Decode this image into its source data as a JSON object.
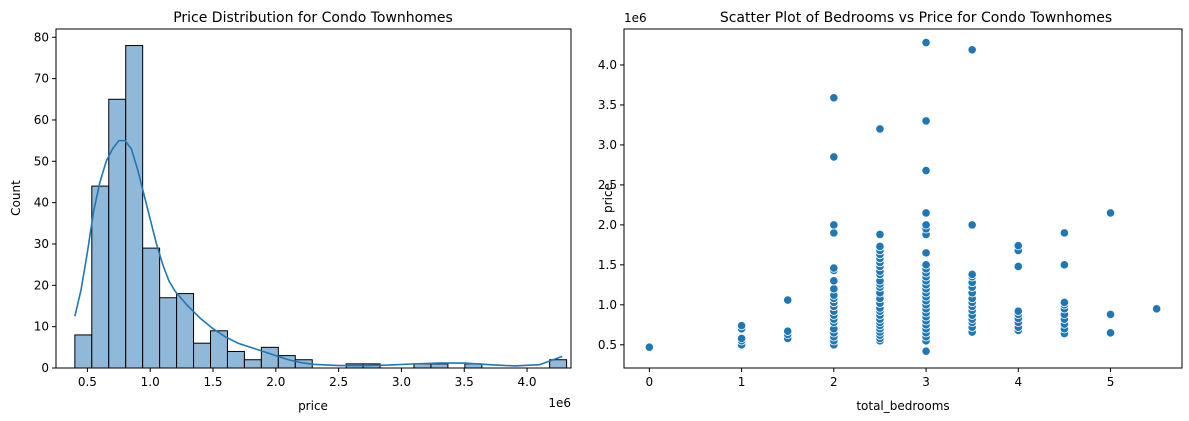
{
  "chart_data": [
    {
      "type": "bar",
      "title": "Price Distribution for Condo Townhomes",
      "xlabel": "price",
      "ylabel": "Count",
      "x_offset_label": "1e6",
      "xlim": [
        0.25,
        4.35
      ],
      "ylim": [
        0,
        82
      ],
      "xticks": [
        0.5,
        1.0,
        1.5,
        2.0,
        2.5,
        3.0,
        3.5,
        4.0
      ],
      "xtick_labels": [
        "0.5",
        "1.0",
        "1.5",
        "2.0",
        "2.5",
        "3.0",
        "3.5",
        "4.0"
      ],
      "yticks": [
        0,
        10,
        20,
        30,
        40,
        50,
        60,
        70,
        80
      ],
      "ytick_labels": [
        "0",
        "10",
        "20",
        "30",
        "40",
        "50",
        "60",
        "70",
        "80"
      ],
      "bin_edges": [
        0.4,
        0.535,
        0.67,
        0.805,
        0.94,
        1.075,
        1.21,
        1.345,
        1.48,
        1.615,
        1.75,
        1.885,
        2.02,
        2.155,
        2.29,
        2.425,
        2.56,
        2.695,
        2.83,
        2.965,
        3.1,
        3.235,
        3.37,
        3.505,
        3.64,
        3.775,
        3.91,
        4.045,
        4.18,
        4.315
      ],
      "values": [
        8,
        44,
        65,
        78,
        29,
        17,
        18,
        6,
        9,
        4,
        2,
        5,
        3,
        2,
        0,
        0,
        1,
        1,
        0,
        0,
        1,
        1,
        0,
        1,
        0,
        0,
        0,
        0,
        2
      ],
      "kde": {
        "x": [
          0.4,
          0.45,
          0.5,
          0.55,
          0.6,
          0.65,
          0.7,
          0.75,
          0.8,
          0.85,
          0.9,
          0.95,
          1.0,
          1.05,
          1.1,
          1.15,
          1.2,
          1.3,
          1.4,
          1.5,
          1.6,
          1.7,
          1.8,
          1.9,
          2.0,
          2.1,
          2.2,
          2.3,
          2.5,
          2.7,
          2.9,
          3.1,
          3.3,
          3.5,
          3.7,
          3.9,
          4.1,
          4.28
        ],
        "y": [
          12.5,
          19,
          28,
          38,
          45,
          50,
          53,
          55,
          55,
          53,
          48,
          42,
          36,
          30,
          25,
          21,
          18.5,
          15,
          12,
          9.5,
          7.5,
          6,
          5,
          4,
          3,
          2,
          1.3,
          0.9,
          0.6,
          0.6,
          0.7,
          1,
          1.2,
          1.2,
          0.8,
          0.5,
          0.8,
          2.8
        ]
      },
      "colors": {
        "bar_fill": "#8fb8d9",
        "bar_edge": "#000000",
        "kde_line": "#1f77b4"
      }
    },
    {
      "type": "scatter",
      "title": "Scatter Plot of Bedrooms vs Price for Condo Townhomes",
      "xlabel": "total_bedrooms",
      "ylabel": "price",
      "y_offset_label": "1e6",
      "xlim": [
        -0.275,
        5.775
      ],
      "ylim": [
        0.21,
        4.45
      ],
      "xticks": [
        0,
        1,
        2,
        3,
        4,
        5
      ],
      "xtick_labels": [
        "0",
        "1",
        "2",
        "3",
        "4",
        "5"
      ],
      "yticks": [
        0.5,
        1.0,
        1.5,
        2.0,
        2.5,
        3.0,
        3.5,
        4.0
      ],
      "ytick_labels": [
        "0.5",
        "1.0",
        "1.5",
        "2.0",
        "2.5",
        "3.0",
        "3.5",
        "4.0"
      ],
      "points": [
        [
          0,
          0.47
        ],
        [
          1,
          0.5
        ],
        [
          1,
          0.55
        ],
        [
          1,
          0.58
        ],
        [
          1,
          0.7
        ],
        [
          1,
          0.74
        ],
        [
          1.5,
          0.58
        ],
        [
          1.5,
          0.63
        ],
        [
          1.5,
          0.67
        ],
        [
          1.5,
          1.06
        ],
        [
          2,
          0.5
        ],
        [
          2,
          0.55
        ],
        [
          2,
          0.6
        ],
        [
          2,
          0.65
        ],
        [
          2,
          0.7
        ],
        [
          2,
          0.78
        ],
        [
          2,
          0.82
        ],
        [
          2,
          0.87
        ],
        [
          2,
          0.92
        ],
        [
          2,
          0.98
        ],
        [
          2,
          1.03
        ],
        [
          2,
          1.08
        ],
        [
          2,
          1.12
        ],
        [
          2,
          1.2
        ],
        [
          2,
          1.3
        ],
        [
          2,
          1.43
        ],
        [
          2,
          1.46
        ],
        [
          2,
          1.9
        ],
        [
          2,
          2.0
        ],
        [
          2,
          2.85
        ],
        [
          2,
          3.59
        ],
        [
          2.5,
          0.55
        ],
        [
          2.5,
          0.58
        ],
        [
          2.5,
          0.62
        ],
        [
          2.5,
          0.66
        ],
        [
          2.5,
          0.7
        ],
        [
          2.5,
          0.74
        ],
        [
          2.5,
          0.78
        ],
        [
          2.5,
          0.82
        ],
        [
          2.5,
          0.87
        ],
        [
          2.5,
          0.92
        ],
        [
          2.5,
          0.96
        ],
        [
          2.5,
          1.02
        ],
        [
          2.5,
          1.08
        ],
        [
          2.5,
          1.15
        ],
        [
          2.5,
          1.22
        ],
        [
          2.5,
          1.26
        ],
        [
          2.5,
          1.3
        ],
        [
          2.5,
          1.38
        ],
        [
          2.5,
          1.42
        ],
        [
          2.5,
          1.48
        ],
        [
          2.5,
          1.53
        ],
        [
          2.5,
          1.58
        ],
        [
          2.5,
          1.63
        ],
        [
          2.5,
          1.68
        ],
        [
          2.5,
          1.73
        ],
        [
          2.5,
          1.88
        ],
        [
          2.5,
          3.2
        ],
        [
          3,
          0.42
        ],
        [
          3,
          0.55
        ],
        [
          3,
          0.6
        ],
        [
          3,
          0.65
        ],
        [
          3,
          0.7
        ],
        [
          3,
          0.75
        ],
        [
          3,
          0.8
        ],
        [
          3,
          0.85
        ],
        [
          3,
          0.9
        ],
        [
          3,
          0.95
        ],
        [
          3,
          1.0
        ],
        [
          3,
          1.05
        ],
        [
          3,
          1.1
        ],
        [
          3,
          1.15
        ],
        [
          3,
          1.2
        ],
        [
          3,
          1.25
        ],
        [
          3,
          1.3
        ],
        [
          3,
          1.35
        ],
        [
          3,
          1.4
        ],
        [
          3,
          1.45
        ],
        [
          3,
          1.5
        ],
        [
          3,
          1.65
        ],
        [
          3,
          1.88
        ],
        [
          3,
          1.95
        ],
        [
          3,
          2.0
        ],
        [
          3,
          2.15
        ],
        [
          3,
          2.68
        ],
        [
          3,
          3.3
        ],
        [
          3,
          4.28
        ],
        [
          3.5,
          0.66
        ],
        [
          3.5,
          0.72
        ],
        [
          3.5,
          0.78
        ],
        [
          3.5,
          0.82
        ],
        [
          3.5,
          0.87
        ],
        [
          3.5,
          0.93
        ],
        [
          3.5,
          0.98
        ],
        [
          3.5,
          1.03
        ],
        [
          3.5,
          1.08
        ],
        [
          3.5,
          1.15
        ],
        [
          3.5,
          1.22
        ],
        [
          3.5,
          1.28
        ],
        [
          3.5,
          1.35
        ],
        [
          3.5,
          1.38
        ],
        [
          3.5,
          2.0
        ],
        [
          3.5,
          4.19
        ],
        [
          4,
          0.68
        ],
        [
          4,
          0.72
        ],
        [
          4,
          0.78
        ],
        [
          4,
          0.83
        ],
        [
          4,
          0.88
        ],
        [
          4,
          0.92
        ],
        [
          4,
          1.48
        ],
        [
          4,
          1.68
        ],
        [
          4,
          1.74
        ],
        [
          4.5,
          0.64
        ],
        [
          4.5,
          0.7
        ],
        [
          4.5,
          0.76
        ],
        [
          4.5,
          0.82
        ],
        [
          4.5,
          0.88
        ],
        [
          4.5,
          0.95
        ],
        [
          4.5,
          1.0
        ],
        [
          4.5,
          1.03
        ],
        [
          4.5,
          1.5
        ],
        [
          4.5,
          1.9
        ],
        [
          5,
          0.65
        ],
        [
          5,
          0.88
        ],
        [
          5,
          2.15
        ],
        [
          5.5,
          0.95
        ]
      ],
      "colors": {
        "point_fill": "#1f77b4",
        "point_edge": "#ffffff"
      }
    }
  ]
}
